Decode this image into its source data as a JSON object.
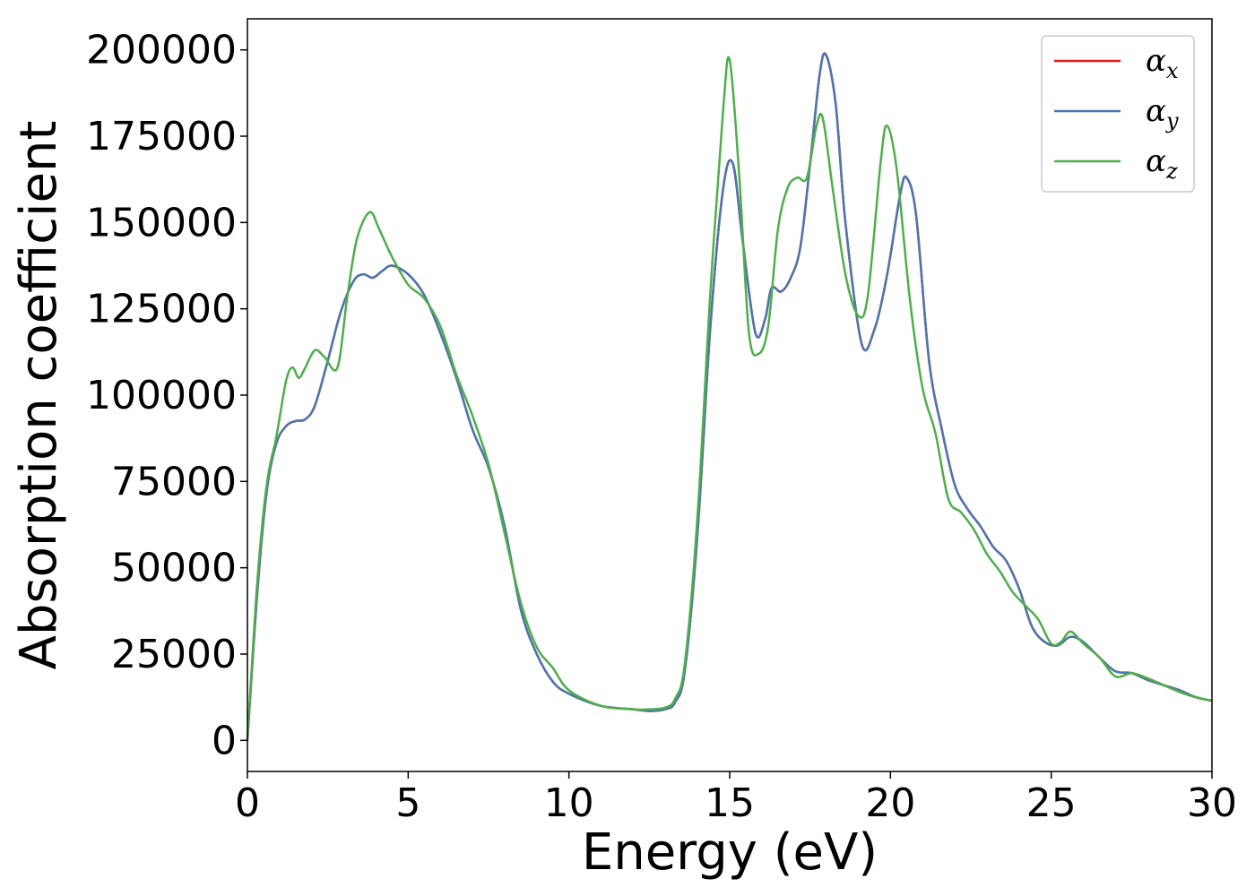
{
  "chart_data": {
    "type": "line",
    "title": "",
    "xlabel": "Energy (eV)",
    "ylabel": "Absorption coefficient",
    "xlim": [
      0,
      30
    ],
    "ylim": [
      -9000,
      209000
    ],
    "xticks": [
      0,
      5,
      10,
      15,
      20,
      25,
      30
    ],
    "yticks": [
      0,
      25000,
      50000,
      75000,
      100000,
      125000,
      150000,
      175000,
      200000
    ],
    "grid": false,
    "legend": "top-right",
    "series": [
      {
        "name": "α",
        "sub": "x",
        "color": "#e41a1c",
        "x": [
          0,
          0.3,
          0.6,
          0.9,
          1.2,
          1.5,
          1.8,
          2.1,
          2.5,
          2.9,
          3.3,
          3.6,
          3.9,
          4.2,
          4.5,
          5.0,
          5.5,
          6.0,
          6.5,
          7.0,
          7.5,
          8.0,
          8.5,
          9.0,
          9.5,
          10,
          11,
          12,
          12.5,
          13,
          13.3,
          13.6,
          14.0,
          14.4,
          14.8,
          15.1,
          15.4,
          15.8,
          16.1,
          16.3,
          16.6,
          16.9,
          17.2,
          17.5,
          17.8,
          18.0,
          18.3,
          18.6,
          19.1,
          19.5,
          19.9,
          20.3,
          20.5,
          20.8,
          21.2,
          21.6,
          22.0,
          22.4,
          22.8,
          23.2,
          23.6,
          24.0,
          24.4,
          24.8,
          25.2,
          25.6,
          26.0,
          26.5,
          27.0,
          27.5,
          28.0,
          28.5,
          29.0,
          29.5,
          30
        ],
        "values": [
          0,
          42000,
          72000,
          86000,
          91000,
          92500,
          93000,
          97000,
          110000,
          124000,
          133000,
          135000,
          134000,
          136000,
          137500,
          135000,
          129000,
          118000,
          105000,
          90000,
          79000,
          62000,
          38000,
          25000,
          17000,
          13500,
          10000,
          9000,
          8500,
          9000,
          11000,
          20000,
          60000,
          120000,
          160000,
          167000,
          145000,
          118000,
          122000,
          131000,
          130000,
          134000,
          143000,
          167000,
          193000,
          198500,
          184000,
          150000,
          115000,
          119000,
          135000,
          158000,
          163000,
          152000,
          110000,
          90000,
          74000,
          67000,
          62000,
          56000,
          52000,
          44000,
          33000,
          28500,
          27500,
          30000,
          28500,
          24000,
          20000,
          19500,
          17500,
          16000,
          14500,
          12500,
          11500
        ]
      },
      {
        "name": "α",
        "sub": "y",
        "color": "#4a77b0",
        "x": [
          0,
          0.3,
          0.6,
          0.9,
          1.2,
          1.5,
          1.8,
          2.1,
          2.5,
          2.9,
          3.3,
          3.6,
          3.9,
          4.2,
          4.5,
          5.0,
          5.5,
          6.0,
          6.5,
          7.0,
          7.5,
          8.0,
          8.5,
          9.0,
          9.5,
          10,
          11,
          12,
          12.5,
          13,
          13.3,
          13.6,
          14.0,
          14.4,
          14.8,
          15.1,
          15.4,
          15.8,
          16.1,
          16.3,
          16.6,
          16.9,
          17.2,
          17.5,
          17.8,
          18.0,
          18.3,
          18.6,
          19.1,
          19.5,
          19.9,
          20.3,
          20.5,
          20.8,
          21.2,
          21.6,
          22.0,
          22.4,
          22.8,
          23.2,
          23.6,
          24.0,
          24.4,
          24.8,
          25.2,
          25.6,
          26.0,
          26.5,
          27.0,
          27.5,
          28.0,
          28.5,
          29.0,
          29.5,
          30
        ],
        "values": [
          0,
          42000,
          72000,
          86000,
          91000,
          92500,
          93000,
          97000,
          110000,
          124000,
          133000,
          135000,
          134000,
          136000,
          137500,
          135000,
          129000,
          118000,
          105000,
          90000,
          79000,
          62000,
          38000,
          25000,
          17000,
          13500,
          10000,
          9000,
          8500,
          9000,
          11000,
          20000,
          60000,
          120000,
          160000,
          167000,
          145000,
          118000,
          122000,
          131000,
          130000,
          134000,
          143000,
          167000,
          193000,
          198500,
          184000,
          150000,
          115000,
          119000,
          135000,
          158000,
          163000,
          152000,
          110000,
          90000,
          74000,
          67000,
          62000,
          56000,
          52000,
          44000,
          33000,
          28500,
          27500,
          30000,
          28500,
          24000,
          20000,
          19500,
          17500,
          16000,
          14500,
          12500,
          11500
        ]
      },
      {
        "name": "α",
        "sub": "z",
        "color": "#4daf4a",
        "x": [
          0,
          0.3,
          0.6,
          0.9,
          1.2,
          1.4,
          1.6,
          1.8,
          2.1,
          2.4,
          2.8,
          3.1,
          3.4,
          3.8,
          4.1,
          4.5,
          5.0,
          5.5,
          6.0,
          6.5,
          7.0,
          7.5,
          8.0,
          8.5,
          9.0,
          9.5,
          10,
          11,
          12,
          12.5,
          13,
          13.3,
          13.6,
          14.0,
          14.4,
          14.8,
          15.0,
          15.3,
          15.6,
          15.9,
          16.2,
          16.5,
          16.8,
          17.1,
          17.4,
          17.7,
          17.9,
          18.2,
          18.6,
          19.0,
          19.3,
          19.7,
          19.9,
          20.2,
          20.6,
          21.0,
          21.4,
          21.8,
          22.2,
          22.6,
          23.0,
          23.4,
          23.8,
          24.2,
          24.6,
          25.0,
          25.3,
          25.6,
          26.0,
          26.5,
          27.0,
          27.5,
          28.0,
          28.5,
          29.0,
          29.5,
          30
        ],
        "values": [
          0,
          45000,
          74000,
          88000,
          104000,
          108000,
          105000,
          108000,
          113000,
          111000,
          108000,
          128000,
          145000,
          153000,
          148000,
          140000,
          132000,
          128000,
          120000,
          106000,
          94000,
          80000,
          60000,
          40000,
          27000,
          21000,
          14500,
          10000,
          9000,
          9000,
          9500,
          12000,
          22000,
          65000,
          130000,
          183000,
          197000,
          163000,
          118000,
          112000,
          120000,
          148000,
          160000,
          163000,
          163000,
          178000,
          180000,
          160000,
          135000,
          123000,
          129000,
          168000,
          178000,
          165000,
          128000,
          102000,
          89000,
          70000,
          66000,
          61000,
          54000,
          49000,
          43000,
          39000,
          35000,
          28000,
          28500,
          31500,
          28000,
          24000,
          18500,
          19500,
          18000,
          16000,
          14000,
          12500,
          11500
        ]
      }
    ]
  }
}
